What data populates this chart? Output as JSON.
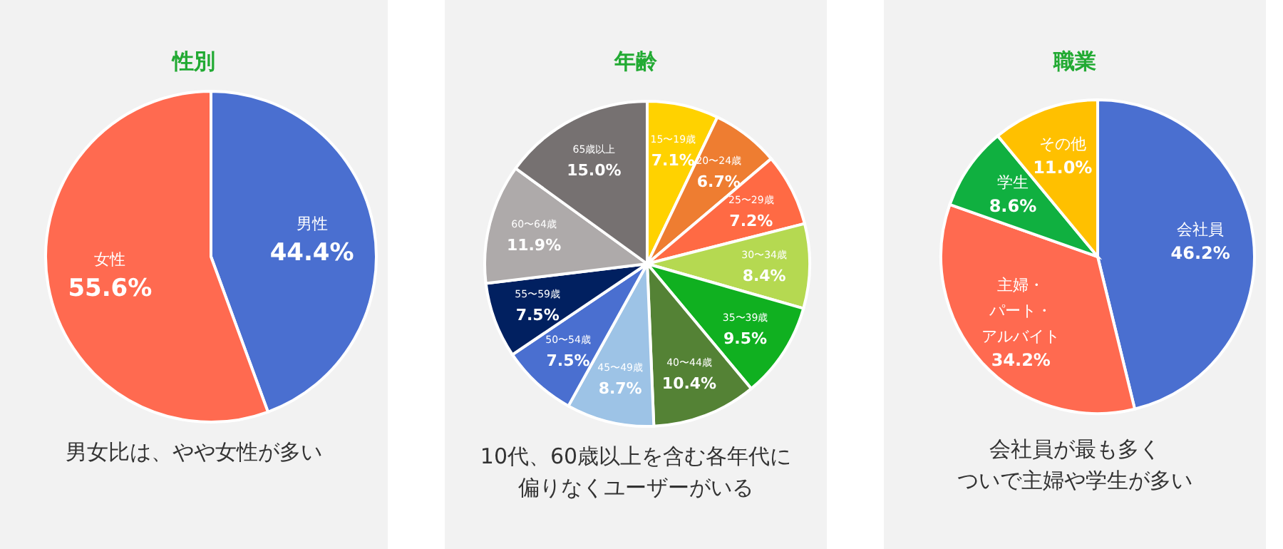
{
  "chart_data": [
    {
      "type": "pie",
      "title": "性別",
      "categories": [
        "男性",
        "女性"
      ],
      "values": [
        44.4,
        55.6
      ],
      "colors": [
        "#4a6fd0",
        "#ff6a50"
      ],
      "value_labels": [
        "44.4%",
        "55.6%"
      ],
      "annotations": [
        "男女比は、やや女性が多い"
      ]
    },
    {
      "type": "pie",
      "title": "年齢",
      "categories": [
        "15〜19歳",
        "20〜24歳",
        "25〜29歳",
        "30〜34歳",
        "35〜39歳",
        "40〜44歳",
        "45〜49歳",
        "50〜54歳",
        "55〜59歳",
        "60〜64歳",
        "65歳以上"
      ],
      "values": [
        7.1,
        6.7,
        7.2,
        8.4,
        9.5,
        10.4,
        8.7,
        7.5,
        7.5,
        11.9,
        15.0
      ],
      "colors": [
        "#ffd200",
        "#ee7d31",
        "#ff6a44",
        "#b5d951",
        "#10b020",
        "#548235",
        "#9dc3e6",
        "#4a6fd0",
        "#012060",
        "#aeaaaa",
        "#767171"
      ],
      "value_labels": [
        "7.1%",
        "6.7%",
        "7.2%",
        "8.4%",
        "9.5%",
        "10.4%",
        "8.7%",
        "7.5%",
        "7.5%",
        "11.9%",
        "15.0%"
      ],
      "annotations": [
        "10代、60歳以上を含む各年代に",
        "偏りなくユーザーがいる"
      ]
    },
    {
      "type": "pie",
      "title": "職業",
      "categories": [
        "会社員",
        "主婦・パート・アルバイト",
        "学生",
        "その他"
      ],
      "values": [
        46.2,
        34.2,
        8.6,
        11.0
      ],
      "colors": [
        "#4a6fd0",
        "#ff6a50",
        "#10b040",
        "#ffc000"
      ],
      "value_labels": [
        "46.2%",
        "34.2%",
        "8.6%",
        "11.0%"
      ],
      "annotations": [
        "会社員が最も多く",
        "ついで主婦や学生が多い"
      ]
    }
  ]
}
